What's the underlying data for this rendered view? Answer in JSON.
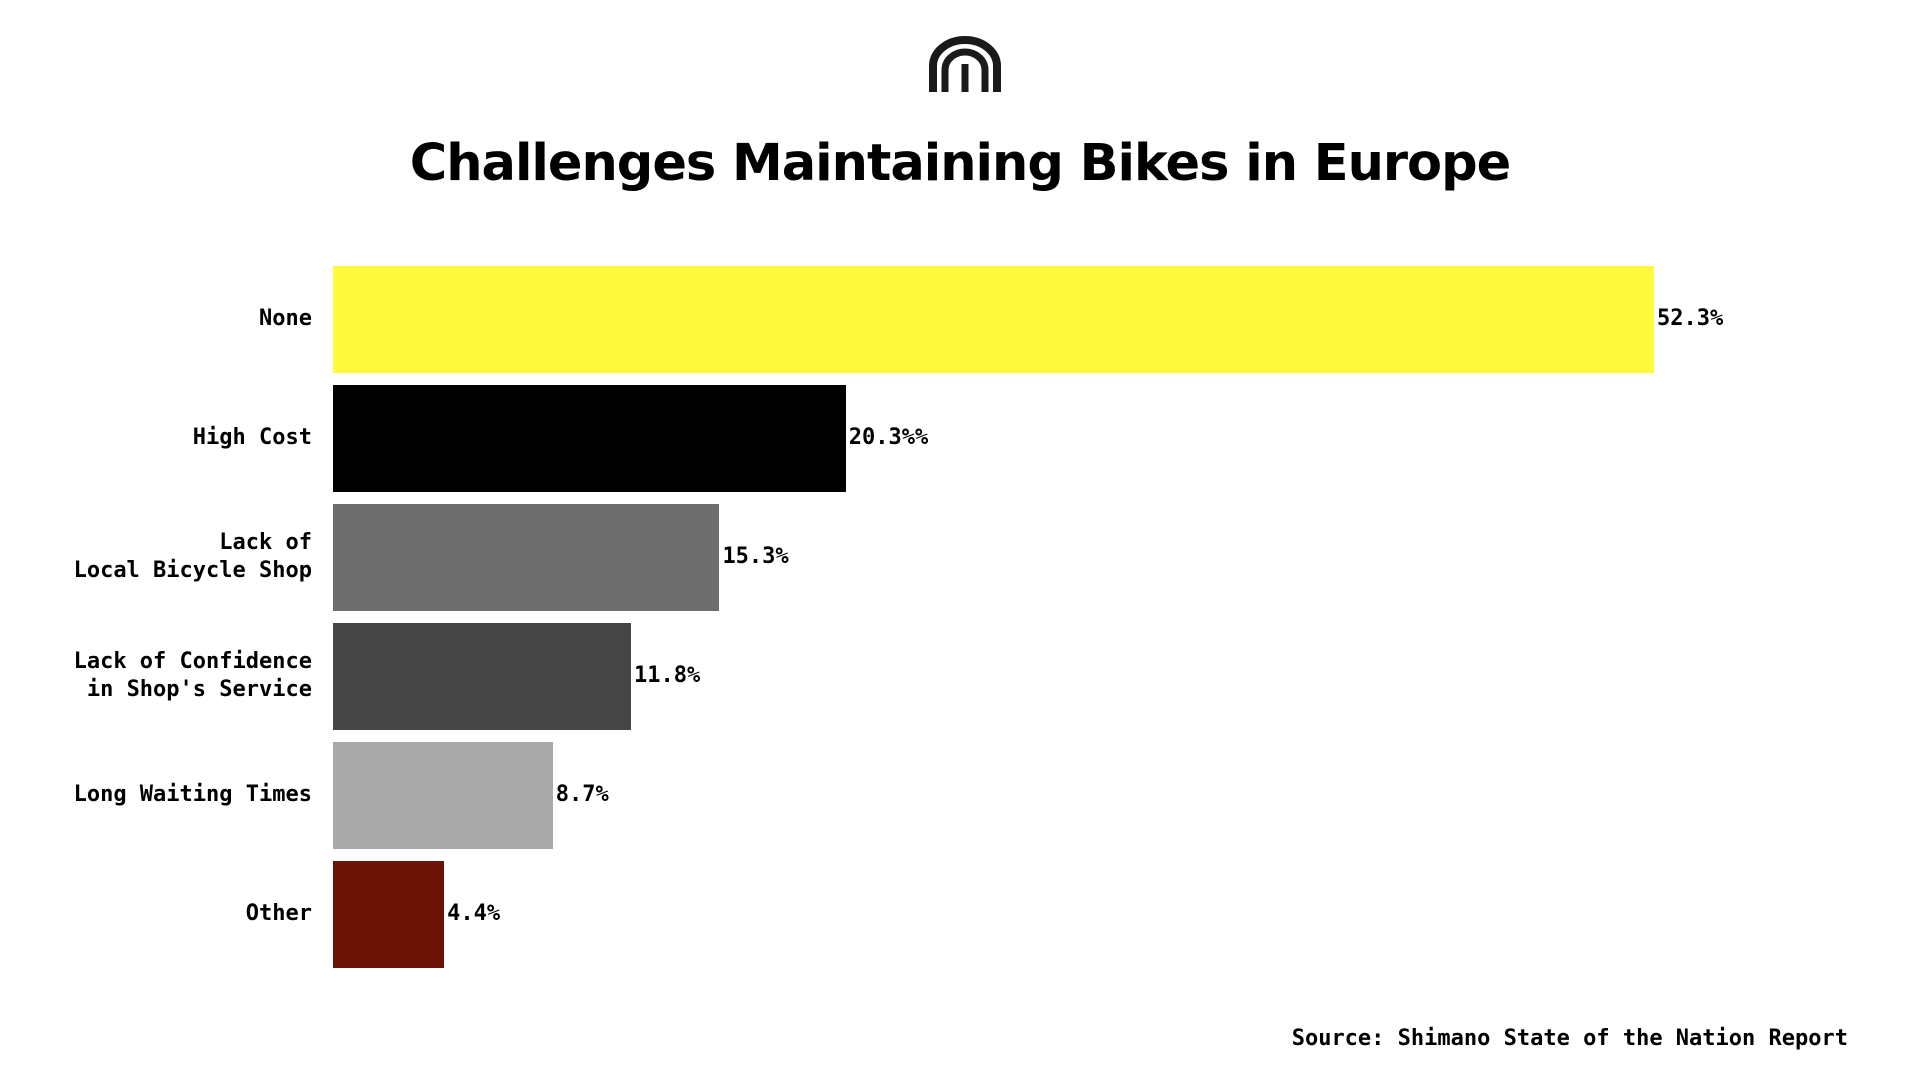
{
  "brand": {
    "logo_icon": "bike-arches-logo-icon",
    "logo_color": "#1a1a1a"
  },
  "chart_data": {
    "type": "bar",
    "orientation": "horizontal",
    "title": "Challenges Maintaining Bikes in Europe",
    "xlabel": "",
    "ylabel": "",
    "xlim": [
      0,
      52.3
    ],
    "grid": false,
    "categories": [
      "None",
      "High Cost",
      "Lack of\nLocal Bicycle Shop",
      "Lack of Confidence\nin Shop's Service",
      "Long Waiting Times",
      "Other"
    ],
    "values": [
      52.3,
      20.3,
      15.3,
      11.8,
      8.7,
      4.4
    ],
    "value_labels": [
      "52.3%",
      "20.3%%",
      "15.3%",
      "11.8%",
      "8.7%",
      "4.4%"
    ],
    "colors": [
      "#fffa3d",
      "#000000",
      "#6d6d6d",
      "#454545",
      "#a9a9a9",
      "#6b1306"
    ]
  },
  "source": "Source: Shimano State of the Nation Report"
}
